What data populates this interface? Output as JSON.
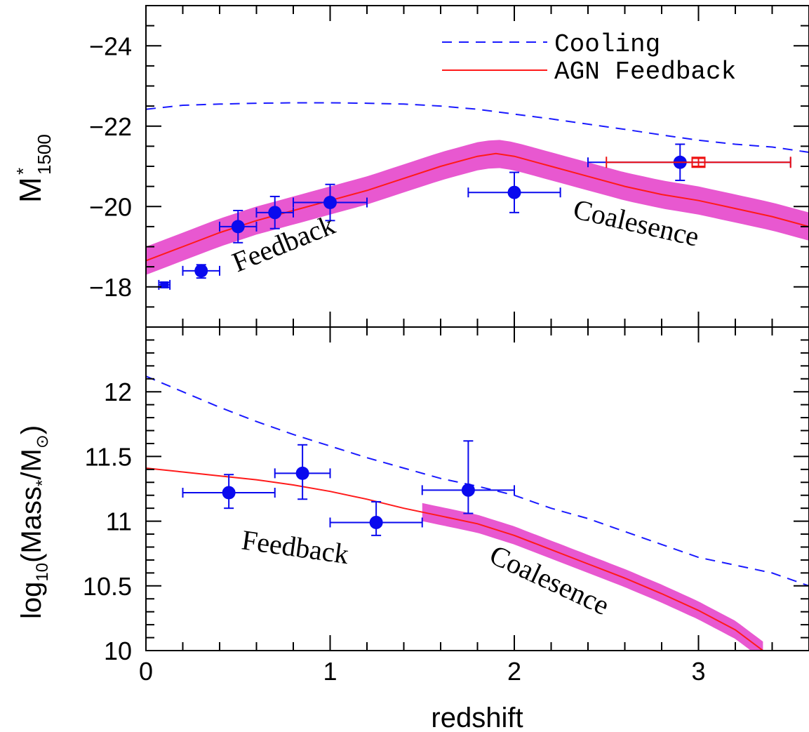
{
  "colors": {
    "cooling": "#1a1aff",
    "agn": "#ff1a1a",
    "band": "#e020c0",
    "points": "#0a0aee",
    "points_alt": "#ee1111"
  },
  "legend": {
    "cooling_label": "Cooling",
    "agn_label": "AGN Feedback"
  },
  "chart_data": [
    {
      "type": "line",
      "panel": "top",
      "ylabel": "M*1500",
      "ylabel_main": "M",
      "ylabel_sup": "*",
      "ylabel_sub": "1500",
      "xlim": [
        0,
        3.6
      ],
      "ylim": [
        -17,
        -25
      ],
      "yticks": [
        -18,
        -20,
        -22,
        -24
      ],
      "ytick_labels": [
        "−18",
        "−20",
        "−22",
        "−24"
      ],
      "grid": false,
      "legend_position": "top-right",
      "series": [
        {
          "name": "Cooling",
          "style": "dashed",
          "x": [
            0,
            0.2,
            0.4,
            0.6,
            0.8,
            1.0,
            1.2,
            1.4,
            1.6,
            1.8,
            2.0,
            2.2,
            2.4,
            2.6,
            2.8,
            3.0,
            3.2,
            3.4,
            3.6
          ],
          "y": [
            -22.42,
            -22.52,
            -22.55,
            -22.57,
            -22.58,
            -22.58,
            -22.57,
            -22.55,
            -22.5,
            -22.42,
            -22.3,
            -22.18,
            -22.05,
            -21.92,
            -21.78,
            -21.65,
            -21.55,
            -21.48,
            -21.35
          ]
        },
        {
          "name": "AGN Feedback",
          "style": "solid",
          "x": [
            0,
            0.2,
            0.4,
            0.6,
            0.8,
            1.0,
            1.2,
            1.4,
            1.6,
            1.8,
            1.9,
            2.0,
            2.2,
            2.4,
            2.6,
            2.8,
            3.0,
            3.2,
            3.4,
            3.6
          ],
          "y": [
            -18.65,
            -19.0,
            -19.35,
            -19.65,
            -19.9,
            -20.15,
            -20.4,
            -20.7,
            -21.0,
            -21.25,
            -21.32,
            -21.25,
            -21.0,
            -20.75,
            -20.5,
            -20.3,
            -20.15,
            -19.95,
            -19.75,
            -19.5
          ],
          "band_halfwidth": 0.35
        }
      ],
      "points": [
        {
          "x": 0.1,
          "y": -18.05,
          "xerr": [
            0.03,
            0.03
          ],
          "yerr": [
            0.06,
            0.06
          ],
          "marker": "square"
        },
        {
          "x": 0.3,
          "y": -18.4,
          "xerr": [
            0.1,
            0.1
          ],
          "yerr": [
            0.15,
            0.18
          ]
        },
        {
          "x": 0.5,
          "y": -19.5,
          "xerr": [
            0.1,
            0.1
          ],
          "yerr": [
            0.4,
            0.4
          ]
        },
        {
          "x": 0.7,
          "y": -19.85,
          "xerr": [
            0.1,
            0.1
          ],
          "yerr": [
            0.4,
            0.4
          ]
        },
        {
          "x": 1.0,
          "y": -20.1,
          "xerr": [
            0.2,
            0.2
          ],
          "yerr": [
            0.45,
            0.45
          ]
        },
        {
          "x": 2.0,
          "y": -20.35,
          "xerr": [
            0.25,
            0.25
          ],
          "yerr": [
            0.5,
            0.5
          ]
        },
        {
          "x": 2.9,
          "y": -21.1,
          "xerr": [
            0.5,
            0.6
          ],
          "yerr": [
            0.45,
            0.45
          ]
        }
      ],
      "red_points": [
        {
          "x": 3.0,
          "y": -21.1,
          "xerr": [
            0.5,
            0.5
          ],
          "yerr": [
            0.1,
            0.1
          ]
        }
      ],
      "annotations": [
        "Feedback",
        "Coalesence"
      ]
    },
    {
      "type": "line",
      "panel": "bottom",
      "xlabel": "redshift",
      "ylabel": "log10(Mass*/M⊙)",
      "xlim": [
        0,
        3.6
      ],
      "ylim": [
        10,
        12.5
      ],
      "xticks": [
        0,
        1,
        2,
        3
      ],
      "xtick_labels": [
        "0",
        "1",
        "2",
        "3"
      ],
      "yticks": [
        10,
        10.5,
        11,
        11.5,
        12
      ],
      "ytick_labels": [
        "10",
        "10.5",
        "11",
        "11.5",
        "12"
      ],
      "grid": false,
      "series": [
        {
          "name": "Cooling",
          "style": "dashed",
          "x": [
            0,
            0.2,
            0.4,
            0.6,
            0.8,
            1.0,
            1.2,
            1.4,
            1.6,
            1.8,
            2.0,
            2.2,
            2.4,
            2.6,
            2.8,
            3.0,
            3.2,
            3.4,
            3.6
          ],
          "y": [
            12.12,
            12.0,
            11.88,
            11.77,
            11.67,
            11.58,
            11.49,
            11.41,
            11.33,
            11.27,
            11.2,
            11.1,
            11.02,
            10.92,
            10.82,
            10.72,
            10.66,
            10.6,
            10.5
          ]
        },
        {
          "name": "AGN Feedback",
          "style": "solid",
          "x": [
            0,
            0.2,
            0.4,
            0.6,
            0.8,
            1.0,
            1.2,
            1.4,
            1.6,
            1.8,
            2.0,
            2.2,
            2.4,
            2.6,
            2.8,
            3.0,
            3.2,
            3.35
          ],
          "y": [
            11.41,
            11.38,
            11.35,
            11.32,
            11.28,
            11.23,
            11.17,
            11.1,
            11.04,
            10.98,
            10.89,
            10.78,
            10.67,
            10.56,
            10.44,
            10.31,
            10.16,
            10.0
          ],
          "band_start_x": 1.5,
          "band_halfwidth": 0.07
        }
      ],
      "points": [
        {
          "x": 0.45,
          "y": 11.22,
          "xerr": [
            0.25,
            0.25
          ],
          "yerr": [
            0.12,
            0.14
          ]
        },
        {
          "x": 0.85,
          "y": 11.37,
          "xerr": [
            0.15,
            0.15
          ],
          "yerr": [
            0.2,
            0.22
          ]
        },
        {
          "x": 1.25,
          "y": 10.99,
          "xerr": [
            0.25,
            0.25
          ],
          "yerr": [
            0.1,
            0.16
          ]
        },
        {
          "x": 1.75,
          "y": 11.24,
          "xerr": [
            0.25,
            0.25
          ],
          "yerr": [
            0.18,
            0.38
          ]
        }
      ],
      "annotations": [
        "Feedback",
        "Coalesence"
      ]
    }
  ]
}
